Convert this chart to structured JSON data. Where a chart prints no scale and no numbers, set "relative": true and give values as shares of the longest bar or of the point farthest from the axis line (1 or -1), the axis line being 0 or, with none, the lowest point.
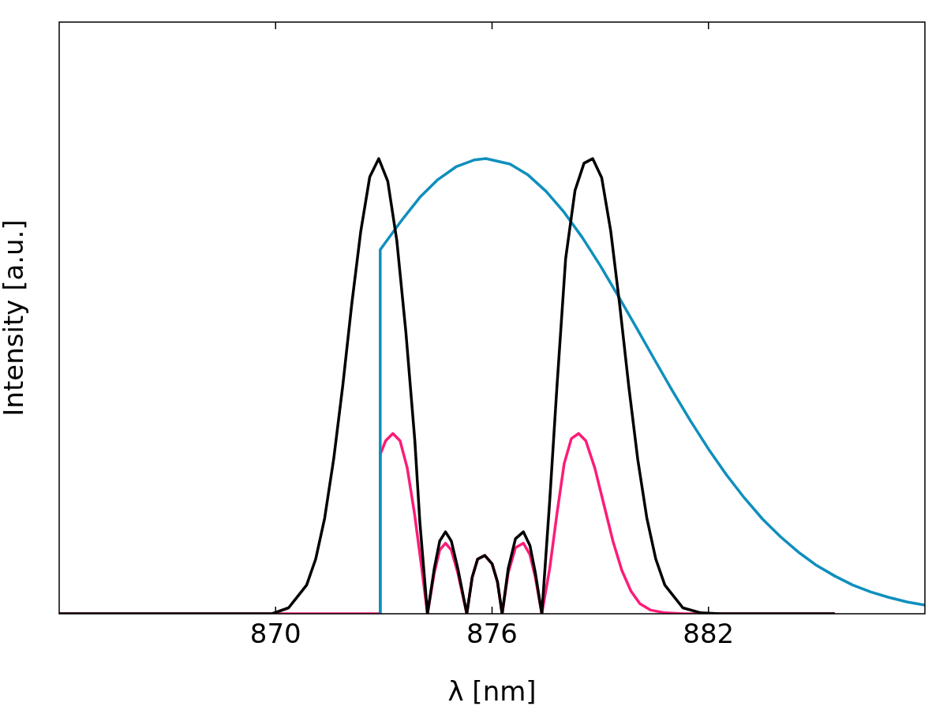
{
  "chart_data": {
    "type": "line",
    "xlabel": "λ [nm]",
    "ylabel": "Intensity [a.u.]",
    "relative": true,
    "xlim": [
      864,
      888
    ],
    "xticks": [
      870,
      876,
      882
    ],
    "grid": false,
    "legend": false,
    "marker": "none",
    "line_style": "solid",
    "series": [
      {
        "color": "#000000",
        "x": [
          864,
          869.9,
          870.36,
          870.86,
          871.11,
          871.36,
          871.61,
          871.86,
          872.11,
          872.36,
          872.61,
          872.86,
          873.11,
          873.36,
          873.61,
          873.86,
          874.0,
          874.21,
          874.4,
          874.55,
          874.71,
          874.87,
          875.05,
          875.3,
          875.45,
          875.6,
          875.8,
          876.0,
          876.15,
          876.28,
          876.45,
          876.65,
          876.87,
          877.05,
          877.2,
          877.38,
          877.6,
          877.8,
          878.04,
          878.3,
          878.55,
          878.79,
          879.04,
          879.29,
          879.54,
          879.79,
          880.04,
          880.29,
          880.54,
          880.79,
          881.29,
          881.79,
          882.3,
          885.5
        ],
        "values": [
          0,
          0,
          0.013,
          0.063,
          0.12,
          0.21,
          0.34,
          0.5,
          0.68,
          0.84,
          0.96,
          1.0,
          0.95,
          0.82,
          0.62,
          0.38,
          0.2,
          0,
          0.1,
          0.16,
          0.18,
          0.16,
          0.1,
          0,
          0.08,
          0.12,
          0.128,
          0.11,
          0.07,
          0,
          0.1,
          0.165,
          0.18,
          0.15,
          0.09,
          0,
          0.25,
          0.5,
          0.78,
          0.93,
          0.99,
          1.0,
          0.958,
          0.841,
          0.678,
          0.5,
          0.339,
          0.211,
          0.12,
          0.063,
          0.013,
          0.002,
          0,
          0
        ]
      },
      {
        "color": "#0f8fbd",
        "x": [
          872.9,
          872.9,
          873.5,
          874,
          874.5,
          875,
          875.5,
          875.83,
          876.5,
          877,
          877.5,
          878,
          878.5,
          879,
          879.5,
          880,
          880.5,
          881,
          881.5,
          882,
          882.5,
          883,
          883.5,
          884,
          884.5,
          885,
          885.5,
          886,
          886.5,
          887,
          887.5,
          888
        ],
        "values": [
          0,
          0.8,
          0.865,
          0.915,
          0.954,
          0.982,
          0.997,
          1.0,
          0.988,
          0.964,
          0.928,
          0.882,
          0.827,
          0.765,
          0.698,
          0.629,
          0.559,
          0.49,
          0.424,
          0.362,
          0.305,
          0.254,
          0.208,
          0.169,
          0.135,
          0.106,
          0.083,
          0.063,
          0.048,
          0.036,
          0.026,
          0.019
        ]
      },
      {
        "color": "#fc1c78",
        "x": [
          864,
          872.9,
          872.9,
          873.05,
          873.25,
          873.45,
          873.65,
          873.85,
          874.05,
          874.21,
          874.4,
          874.55,
          874.71,
          874.87,
          875.05,
          875.3,
          875.45,
          875.6,
          875.8,
          876.0,
          876.15,
          876.28,
          876.45,
          876.65,
          876.87,
          877.05,
          877.2,
          877.38,
          877.6,
          877.8,
          878.0,
          878.2,
          878.4,
          878.6,
          878.85,
          879.1,
          879.35,
          879.6,
          879.85,
          880.1,
          880.4,
          880.8,
          881.3,
          885.5
        ],
        "values": [
          0,
          0,
          0.35,
          0.38,
          0.396,
          0.38,
          0.32,
          0.22,
          0.1,
          0,
          0.09,
          0.14,
          0.155,
          0.14,
          0.09,
          0,
          0.08,
          0.12,
          0.128,
          0.11,
          0.07,
          0,
          0.09,
          0.145,
          0.155,
          0.13,
          0.08,
          0,
          0.1,
          0.22,
          0.33,
          0.385,
          0.396,
          0.38,
          0.32,
          0.24,
          0.16,
          0.095,
          0.05,
          0.022,
          0.008,
          0.002,
          0,
          0
        ]
      }
    ]
  }
}
